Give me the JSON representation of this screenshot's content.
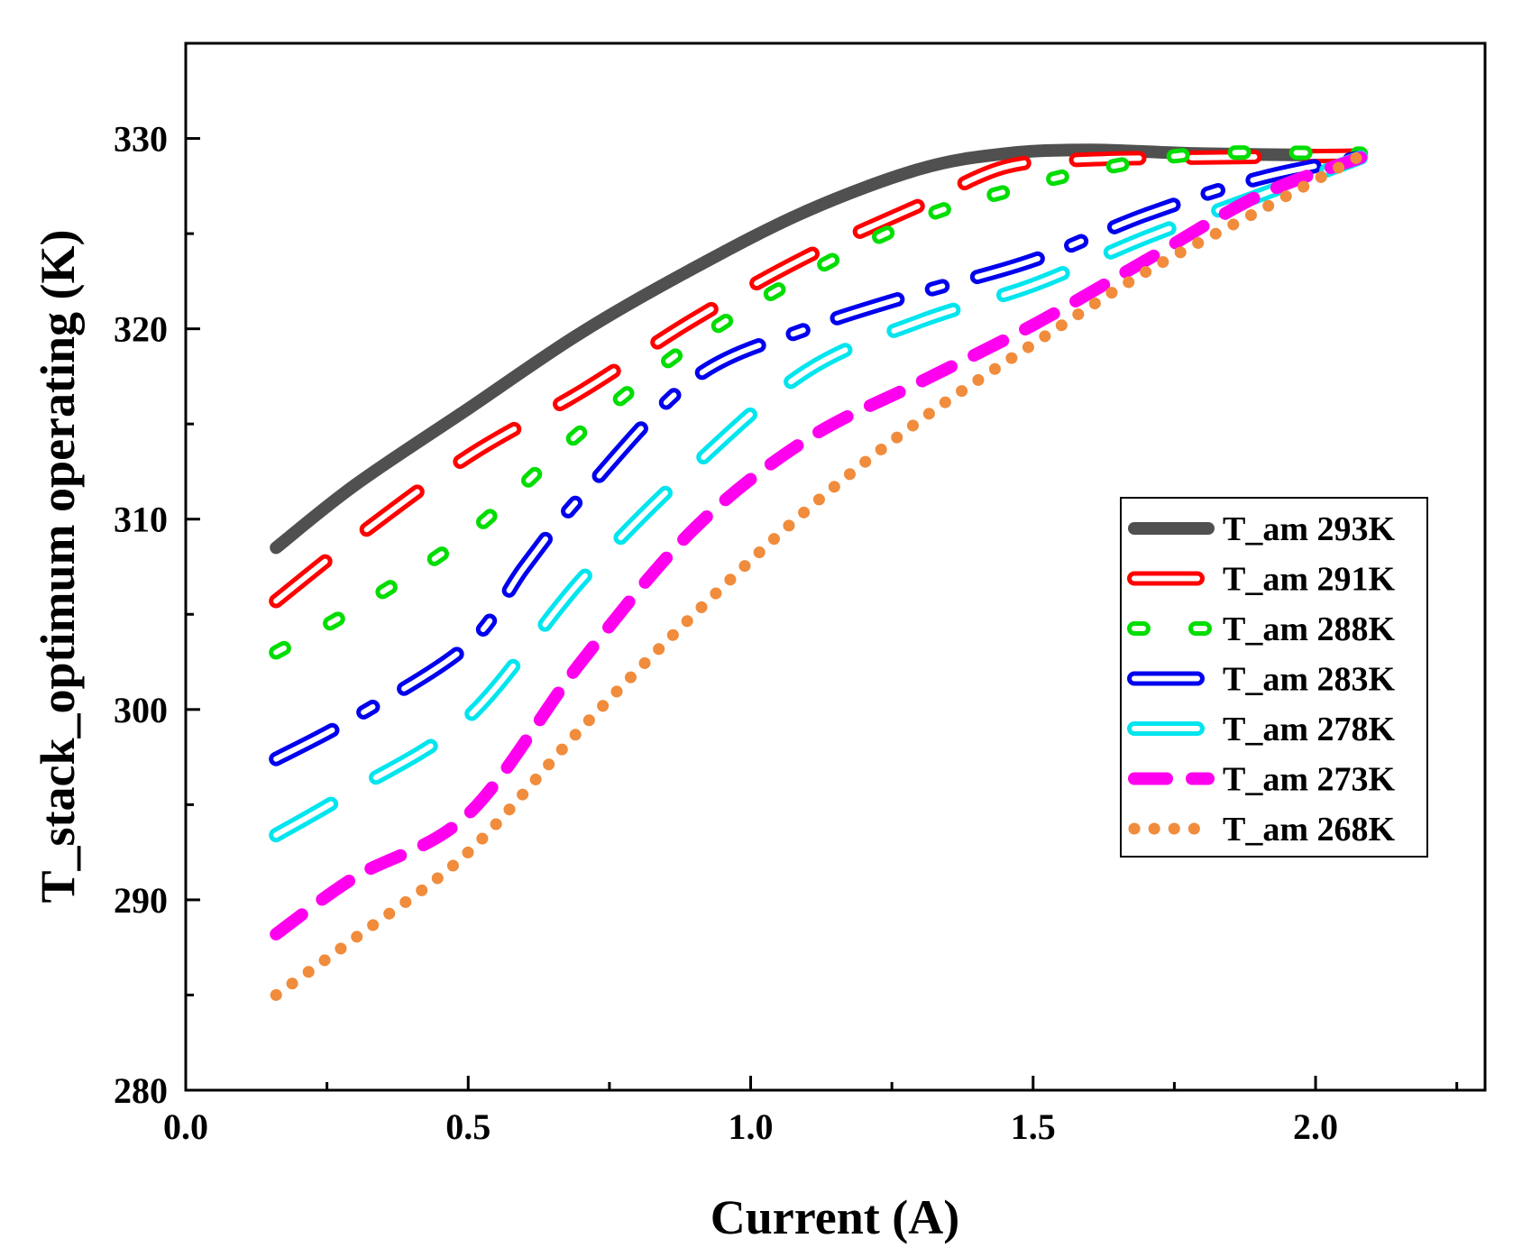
{
  "chart_data": {
    "type": "line",
    "title": "",
    "xlabel": "Current (A)",
    "ylabel": "T_stack_optimum operating (K)",
    "xlim": [
      0.0,
      2.3
    ],
    "ylim": [
      280,
      335
    ],
    "xticks": [
      0.0,
      0.5,
      1.0,
      1.5,
      2.0
    ],
    "xtick_labels": [
      "0.0",
      "0.5",
      "1.0",
      "1.5",
      "2.0"
    ],
    "xminor": [
      0.25,
      0.75,
      1.25,
      1.75,
      2.25
    ],
    "yticks": [
      280,
      290,
      300,
      310,
      320,
      330
    ],
    "ytick_labels": [
      "280",
      "290",
      "300",
      "310",
      "320",
      "330"
    ],
    "yminor": [
      285,
      295,
      305,
      315,
      325
    ],
    "grid": false,
    "legend_position": "right",
    "series": [
      {
        "name": "T_am 293K",
        "color": "#505050",
        "style": "solid",
        "x": [
          0.16,
          0.3,
          0.5,
          0.7,
          0.9,
          1.1,
          1.3,
          1.45,
          1.6,
          1.8,
          2.08
        ],
        "y": [
          308.5,
          311.8,
          315.8,
          319.8,
          323.2,
          326.2,
          328.4,
          329.2,
          329.4,
          329.2,
          329.1
        ]
      },
      {
        "name": "T_am 291K",
        "color": "#ff0000",
        "style": "hollow-dash",
        "x": [
          0.16,
          0.3,
          0.5,
          0.7,
          0.9,
          1.1,
          1.3,
          1.45,
          1.6,
          1.8,
          2.08
        ],
        "y": [
          305.7,
          309.0,
          313.3,
          316.7,
          320.5,
          323.8,
          326.5,
          328.5,
          328.9,
          329.0,
          329.1
        ]
      },
      {
        "name": "T_am 288K",
        "color": "#00dd00",
        "style": "hollow-dot",
        "x": [
          0.16,
          0.3,
          0.5,
          0.7,
          0.9,
          1.1,
          1.3,
          1.45,
          1.6,
          1.8,
          2.08
        ],
        "y": [
          303.0,
          305.3,
          309.2,
          314.6,
          319.3,
          322.9,
          325.8,
          327.2,
          328.3,
          329.2,
          329.2
        ]
      },
      {
        "name": "T_am 283K",
        "color": "#0000ee",
        "style": "hollow-dashdot",
        "x": [
          0.16,
          0.3,
          0.5,
          0.6,
          0.7,
          0.9,
          1.1,
          1.3,
          1.5,
          1.7,
          1.9,
          2.08
        ],
        "y": [
          297.4,
          299.6,
          303.4,
          307.5,
          311.2,
          317.4,
          320.0,
          321.9,
          323.6,
          326.0,
          327.9,
          329.0
        ]
      },
      {
        "name": "T_am 278K",
        "color": "#00e5ee",
        "style": "hollow-dash",
        "x": [
          0.16,
          0.3,
          0.5,
          0.7,
          0.9,
          1.1,
          1.3,
          1.5,
          1.7,
          1.9,
          2.08
        ],
        "y": [
          293.4,
          295.8,
          299.6,
          306.8,
          312.8,
          317.8,
          320.4,
          322.3,
          324.8,
          327.0,
          329.0
        ]
      },
      {
        "name": "T_am 273K",
        "color": "#ff00ee",
        "style": "dash",
        "x": [
          0.16,
          0.3,
          0.5,
          0.7,
          0.9,
          1.1,
          1.3,
          1.5,
          1.7,
          1.9,
          2.08
        ],
        "y": [
          288.2,
          291.2,
          294.5,
          302.5,
          309.5,
          314.2,
          317.2,
          320.2,
          323.6,
          327.0,
          329.0
        ]
      },
      {
        "name": "T_am 268K",
        "color": "#f08c3c",
        "style": "dotted",
        "x": [
          0.16,
          0.3,
          0.5,
          0.7,
          0.9,
          1.1,
          1.3,
          1.5,
          1.7,
          1.9,
          2.08
        ],
        "y": [
          285.0,
          288.0,
          292.5,
          299.0,
          305.0,
          310.5,
          315.2,
          319.2,
          323.0,
          326.2,
          329.1
        ]
      }
    ]
  }
}
